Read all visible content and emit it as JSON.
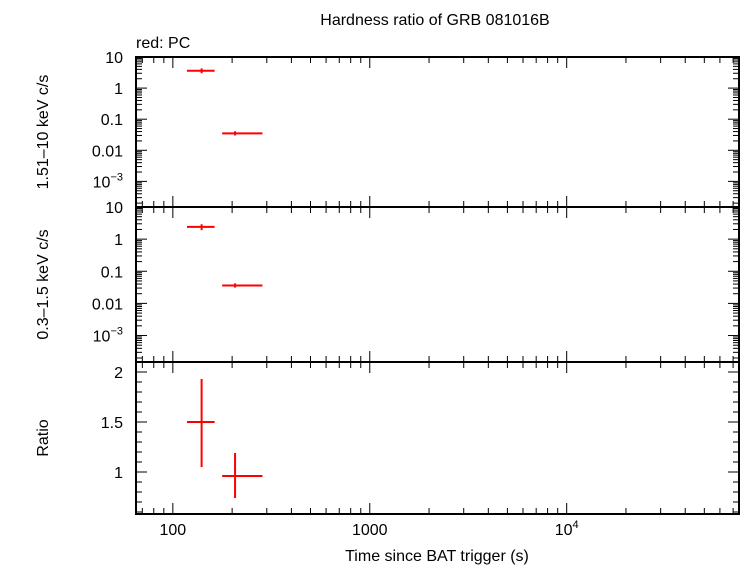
{
  "chart_data": {
    "type": "scatter",
    "title": "Hardness ratio of GRB 081016B",
    "legend_text": "red: PC",
    "xlabel": "Time since BAT trigger (s)",
    "xscale": "log",
    "xlim": [
      65,
      75000
    ],
    "x_ticks": [
      {
        "value": 100,
        "label": "100"
      },
      {
        "value": 1000,
        "label": "1000"
      },
      {
        "value": 10000,
        "label": "10",
        "sup": "4"
      }
    ],
    "series_color": "#ff0000",
    "panels": [
      {
        "id": "hard",
        "ylabel": "1.51–10 keV c/s",
        "yscale": "log",
        "ylim": [
          0.00015,
          10
        ],
        "y_ticks": [
          {
            "value": 10,
            "label": "10"
          },
          {
            "value": 1,
            "label": "1"
          },
          {
            "value": 0.1,
            "label": "0.1"
          },
          {
            "value": 0.01,
            "label": "0.01"
          },
          {
            "value": 0.001,
            "label": "10",
            "sup": "−3"
          }
        ],
        "points": [
          {
            "x": 140,
            "x_lo": 118,
            "x_hi": 163,
            "y": 3.6,
            "y_lo": 3.0,
            "y_hi": 4.3
          },
          {
            "x": 207,
            "x_lo": 178,
            "x_hi": 285,
            "y": 0.035,
            "y_lo": 0.03,
            "y_hi": 0.041
          }
        ]
      },
      {
        "id": "soft",
        "ylabel": "0.3–1.5 keV c/s",
        "yscale": "log",
        "ylim": [
          0.00015,
          10
        ],
        "y_ticks": [
          {
            "value": 10,
            "label": "10"
          },
          {
            "value": 1,
            "label": "1"
          },
          {
            "value": 0.1,
            "label": "0.1"
          },
          {
            "value": 0.01,
            "label": "0.01"
          },
          {
            "value": 0.001,
            "label": "10",
            "sup": "−3"
          }
        ],
        "points": [
          {
            "x": 140,
            "x_lo": 118,
            "x_hi": 163,
            "y": 2.4,
            "y_lo": 1.9,
            "y_hi": 2.9
          },
          {
            "x": 207,
            "x_lo": 178,
            "x_hi": 285,
            "y": 0.036,
            "y_lo": 0.031,
            "y_hi": 0.042
          }
        ]
      },
      {
        "id": "ratio",
        "ylabel": "Ratio",
        "yscale": "linear",
        "ylim": [
          0.58,
          2.1
        ],
        "y_ticks": [
          {
            "value": 2,
            "label": "2"
          },
          {
            "value": 1.5,
            "label": "1.5"
          },
          {
            "value": 1,
            "label": "1"
          }
        ],
        "points": [
          {
            "x": 140,
            "x_lo": 118,
            "x_hi": 163,
            "y": 1.5,
            "y_lo": 1.05,
            "y_hi": 1.93
          },
          {
            "x": 207,
            "x_lo": 178,
            "x_hi": 285,
            "y": 0.96,
            "y_lo": 0.74,
            "y_hi": 1.19
          }
        ]
      }
    ]
  }
}
